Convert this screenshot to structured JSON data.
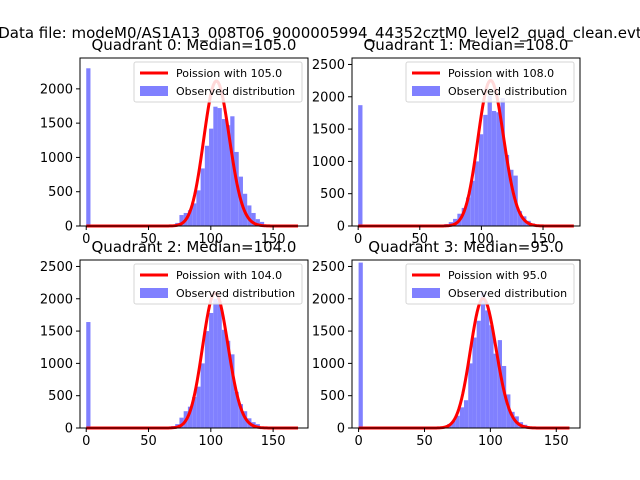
{
  "figure": {
    "suptitle": "Data file: modeM0/AS1A13_008T06_9000005994_44352cztM0_level2_quad_clean.evt"
  },
  "chart_data": [
    {
      "type": "bar",
      "title": "Quadrant 0: Median=105.0",
      "xlim": [
        -5,
        178
      ],
      "ylim": [
        0,
        2450
      ],
      "xticks": [
        0,
        50,
        100,
        150
      ],
      "yticks": [
        0,
        500,
        1000,
        1500,
        2000
      ],
      "legend_placement": "top-right",
      "hist": {
        "name": "Observed distribution",
        "color": "#8080ff",
        "bin_width": 3.4,
        "bins": [
          {
            "x": 0,
            "count": 2300
          },
          {
            "x": 61.2,
            "count": 5
          },
          {
            "x": 64.6,
            "count": 10
          },
          {
            "x": 68.0,
            "count": 18
          },
          {
            "x": 71.4,
            "count": 45
          },
          {
            "x": 74.8,
            "count": 160
          },
          {
            "x": 78.2,
            "count": 190
          },
          {
            "x": 81.6,
            "count": 230
          },
          {
            "x": 85.0,
            "count": 330
          },
          {
            "x": 88.4,
            "count": 520
          },
          {
            "x": 91.8,
            "count": 840
          },
          {
            "x": 95.2,
            "count": 1170
          },
          {
            "x": 98.6,
            "count": 1420
          },
          {
            "x": 102.0,
            "count": 1740
          },
          {
            "x": 105.4,
            "count": 1720
          },
          {
            "x": 108.8,
            "count": 1560
          },
          {
            "x": 112.2,
            "count": 1470
          },
          {
            "x": 115.6,
            "count": 1600
          },
          {
            "x": 119.0,
            "count": 1080
          },
          {
            "x": 122.4,
            "count": 720
          },
          {
            "x": 125.8,
            "count": 470
          },
          {
            "x": 129.2,
            "count": 300
          },
          {
            "x": 132.6,
            "count": 190
          },
          {
            "x": 136.0,
            "count": 100
          },
          {
            "x": 139.4,
            "count": 60
          },
          {
            "x": 142.8,
            "count": 20
          },
          {
            "x": 146.2,
            "count": 10
          }
        ]
      },
      "curve": {
        "name": "Poission with 105.0",
        "color": "#ff0000",
        "mean": 105.0,
        "scale": 3.4,
        "x_range": [
          0,
          170
        ]
      }
    },
    {
      "type": "bar",
      "title": "Quadrant 1: Median=108.0",
      "xlim": [
        -5,
        180
      ],
      "ylim": [
        0,
        2600
      ],
      "xticks": [
        0,
        50,
        100,
        150
      ],
      "yticks": [
        0,
        500,
        1000,
        1500,
        2000,
        2500
      ],
      "legend_placement": "top-right",
      "hist": {
        "name": "Observed distribution",
        "color": "#8080ff",
        "bin_width": 3.5,
        "bins": [
          {
            "x": 0,
            "count": 1870
          },
          {
            "x": 63.0,
            "count": 5
          },
          {
            "x": 66.5,
            "count": 12
          },
          {
            "x": 70.0,
            "count": 30
          },
          {
            "x": 73.5,
            "count": 60
          },
          {
            "x": 77.0,
            "count": 110
          },
          {
            "x": 80.5,
            "count": 190
          },
          {
            "x": 84.0,
            "count": 280
          },
          {
            "x": 87.5,
            "count": 440
          },
          {
            "x": 91.0,
            "count": 700
          },
          {
            "x": 94.5,
            "count": 1000
          },
          {
            "x": 98.0,
            "count": 1420
          },
          {
            "x": 101.5,
            "count": 1720
          },
          {
            "x": 105.0,
            "count": 2020
          },
          {
            "x": 108.5,
            "count": 1780
          },
          {
            "x": 112.0,
            "count": 1760
          },
          {
            "x": 115.5,
            "count": 1980
          },
          {
            "x": 119.0,
            "count": 1100
          },
          {
            "x": 122.5,
            "count": 870
          },
          {
            "x": 126.0,
            "count": 780
          },
          {
            "x": 129.5,
            "count": 230
          },
          {
            "x": 133.0,
            "count": 150
          },
          {
            "x": 136.5,
            "count": 80
          },
          {
            "x": 140.0,
            "count": 40
          },
          {
            "x": 143.5,
            "count": 15
          }
        ]
      },
      "curve": {
        "name": "Poission with 108.0",
        "color": "#ff0000",
        "mean": 108.0,
        "scale": 3.5,
        "x_range": [
          0,
          175
        ]
      }
    },
    {
      "type": "bar",
      "title": "Quadrant 2: Median=104.0",
      "xlim": [
        -5,
        178
      ],
      "ylim": [
        0,
        2600
      ],
      "xticks": [
        0,
        50,
        100,
        150
      ],
      "yticks": [
        0,
        500,
        1000,
        1500,
        2000,
        2500
      ],
      "legend_placement": "top-right",
      "hist": {
        "name": "Observed distribution",
        "color": "#8080ff",
        "bin_width": 3.4,
        "bins": [
          {
            "x": 0,
            "count": 1640
          },
          {
            "x": 61.2,
            "count": 5
          },
          {
            "x": 64.6,
            "count": 10
          },
          {
            "x": 68.0,
            "count": 30
          },
          {
            "x": 71.4,
            "count": 60
          },
          {
            "x": 74.8,
            "count": 160
          },
          {
            "x": 78.2,
            "count": 260
          },
          {
            "x": 81.6,
            "count": 330
          },
          {
            "x": 85.0,
            "count": 480
          },
          {
            "x": 88.4,
            "count": 640
          },
          {
            "x": 91.8,
            "count": 1000
          },
          {
            "x": 95.2,
            "count": 1500
          },
          {
            "x": 98.6,
            "count": 1780
          },
          {
            "x": 102.0,
            "count": 2000
          },
          {
            "x": 105.4,
            "count": 1960
          },
          {
            "x": 108.8,
            "count": 1520
          },
          {
            "x": 112.2,
            "count": 1350
          },
          {
            "x": 115.6,
            "count": 1140
          },
          {
            "x": 119.0,
            "count": 560
          },
          {
            "x": 122.4,
            "count": 370
          },
          {
            "x": 125.8,
            "count": 260
          },
          {
            "x": 129.2,
            "count": 150
          },
          {
            "x": 132.6,
            "count": 90
          },
          {
            "x": 136.0,
            "count": 60
          },
          {
            "x": 139.4,
            "count": 15
          }
        ]
      },
      "curve": {
        "name": "Poission with 104.0",
        "color": "#ff0000",
        "mean": 104.0,
        "scale": 3.4,
        "x_range": [
          0,
          170
        ]
      }
    },
    {
      "type": "bar",
      "title": "Quadrant 3: Median=95.0",
      "xlim": [
        -5,
        168
      ],
      "ylim": [
        0,
        2600
      ],
      "xticks": [
        0,
        50,
        100,
        150
      ],
      "yticks": [
        0,
        500,
        1000,
        1500,
        2000,
        2500
      ],
      "legend_placement": "top-right",
      "hist": {
        "name": "Observed distribution",
        "color": "#8080ff",
        "bin_width": 3.2,
        "bins": [
          {
            "x": 0,
            "count": 2560
          },
          {
            "x": 57.6,
            "count": 5
          },
          {
            "x": 60.8,
            "count": 10
          },
          {
            "x": 64.0,
            "count": 30
          },
          {
            "x": 67.2,
            "count": 60
          },
          {
            "x": 70.4,
            "count": 110
          },
          {
            "x": 73.6,
            "count": 190
          },
          {
            "x": 76.8,
            "count": 320
          },
          {
            "x": 80.0,
            "count": 430
          },
          {
            "x": 83.2,
            "count": 1000
          },
          {
            "x": 86.4,
            "count": 1400
          },
          {
            "x": 89.6,
            "count": 1660
          },
          {
            "x": 92.8,
            "count": 2100
          },
          {
            "x": 96.0,
            "count": 1820
          },
          {
            "x": 99.2,
            "count": 1590
          },
          {
            "x": 102.4,
            "count": 1150
          },
          {
            "x": 105.6,
            "count": 1360
          },
          {
            "x": 108.8,
            "count": 960
          },
          {
            "x": 112.0,
            "count": 520
          },
          {
            "x": 115.2,
            "count": 250
          },
          {
            "x": 118.4,
            "count": 180
          },
          {
            "x": 121.6,
            "count": 90
          },
          {
            "x": 124.8,
            "count": 50
          },
          {
            "x": 128.0,
            "count": 15
          }
        ]
      },
      "curve": {
        "name": "Poission with 95.0",
        "color": "#ff0000",
        "mean": 95.0,
        "scale": 3.2,
        "x_range": [
          0,
          160
        ]
      }
    }
  ]
}
